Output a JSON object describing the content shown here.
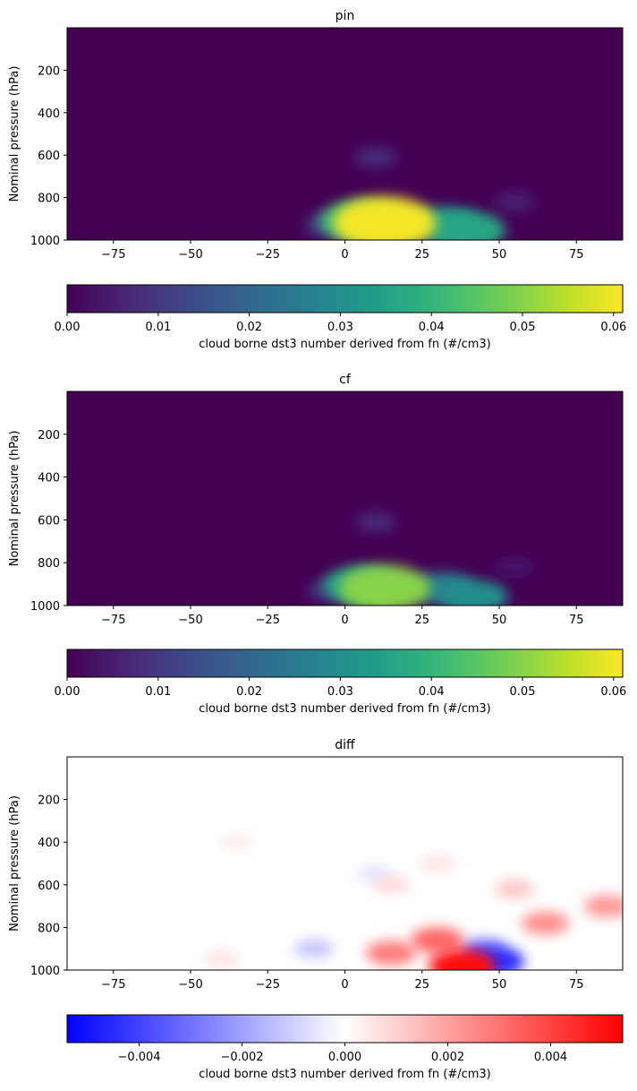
{
  "colorbar_label": "cloud borne dst3 number derived from fn (#/cm3)",
  "chart_data": [
    {
      "type": "heatmap",
      "title": "pin",
      "ylabel": "Nominal pressure (hPa)",
      "xlim": [
        -90,
        90
      ],
      "ylim": [
        1000,
        0
      ],
      "x_ticks": [
        "−75",
        "−50",
        "−25",
        "0",
        "25",
        "50",
        "75"
      ],
      "y_ticks": [
        "200",
        "400",
        "600",
        "800",
        "1000"
      ],
      "colormap": "viridis",
      "color_range": [
        0,
        0.061
      ],
      "colorbar_ticks": [
        "0.00",
        "0.01",
        "0.02",
        "0.03",
        "0.04",
        "0.05",
        "0.06"
      ],
      "features": [
        {
          "lat": 13,
          "pressure": 920,
          "value": 0.06
        },
        {
          "lat": 5,
          "pressure": 910,
          "value": 0.042
        },
        {
          "lat": 32,
          "pressure": 930,
          "value": 0.034
        },
        {
          "lat": 40,
          "pressure": 955,
          "value": 0.036
        },
        {
          "lat": 10,
          "pressure": 610,
          "value": 0.008
        },
        {
          "lat": -5,
          "pressure": 930,
          "value": 0.013
        },
        {
          "lat": 55,
          "pressure": 820,
          "value": 0.006
        }
      ]
    },
    {
      "type": "heatmap",
      "title": "cf",
      "ylabel": "Nominal pressure (hPa)",
      "xlim": [
        -90,
        90
      ],
      "ylim": [
        1000,
        0
      ],
      "x_ticks": [
        "−75",
        "−50",
        "−25",
        "0",
        "25",
        "50",
        "75"
      ],
      "y_ticks": [
        "200",
        "400",
        "600",
        "800",
        "1000"
      ],
      "colormap": "viridis",
      "color_range": [
        0,
        0.061
      ],
      "colorbar_ticks": [
        "0.00",
        "0.01",
        "0.02",
        "0.03",
        "0.04",
        "0.05",
        "0.06"
      ],
      "features": [
        {
          "lat": 13,
          "pressure": 920,
          "value": 0.05
        },
        {
          "lat": 5,
          "pressure": 905,
          "value": 0.036
        },
        {
          "lat": 32,
          "pressure": 920,
          "value": 0.027
        },
        {
          "lat": 42,
          "pressure": 960,
          "value": 0.03
        },
        {
          "lat": 10,
          "pressure": 610,
          "value": 0.007
        },
        {
          "lat": -5,
          "pressure": 930,
          "value": 0.01
        },
        {
          "lat": 55,
          "pressure": 820,
          "value": 0.004
        }
      ]
    },
    {
      "type": "heatmap",
      "title": "diff",
      "ylabel": "Nominal pressure (hPa)",
      "xlim": [
        -90,
        90
      ],
      "ylim": [
        1000,
        0
      ],
      "x_ticks": [
        "−75",
        "−50",
        "−25",
        "0",
        "25",
        "50",
        "75"
      ],
      "y_ticks": [
        "200",
        "400",
        "600",
        "800",
        "1000"
      ],
      "colormap": "bwr",
      "color_range": [
        -0.0054,
        0.0054
      ],
      "colorbar_ticks": [
        "−0.004",
        "−0.002",
        "0.000",
        "0.002",
        "0.004"
      ],
      "features": [
        {
          "lat": 38,
          "pressure": 980,
          "value": 0.0052
        },
        {
          "lat": 30,
          "pressure": 860,
          "value": 0.0032
        },
        {
          "lat": 15,
          "pressure": 920,
          "value": 0.0028
        },
        {
          "lat": 48,
          "pressure": 960,
          "value": -0.0045
        },
        {
          "lat": 45,
          "pressure": 900,
          "value": -0.0022
        },
        {
          "lat": -10,
          "pressure": 900,
          "value": -0.0012
        },
        {
          "lat": 65,
          "pressure": 780,
          "value": 0.0024
        },
        {
          "lat": 85,
          "pressure": 700,
          "value": 0.0022
        },
        {
          "lat": 55,
          "pressure": 620,
          "value": 0.0012
        },
        {
          "lat": 15,
          "pressure": 600,
          "value": 0.0008
        },
        {
          "lat": 30,
          "pressure": 500,
          "value": 0.0006
        },
        {
          "lat": -35,
          "pressure": 400,
          "value": 0.0004
        },
        {
          "lat": 10,
          "pressure": 550,
          "value": -0.0006
        },
        {
          "lat": -40,
          "pressure": 950,
          "value": 0.0006
        }
      ]
    }
  ]
}
